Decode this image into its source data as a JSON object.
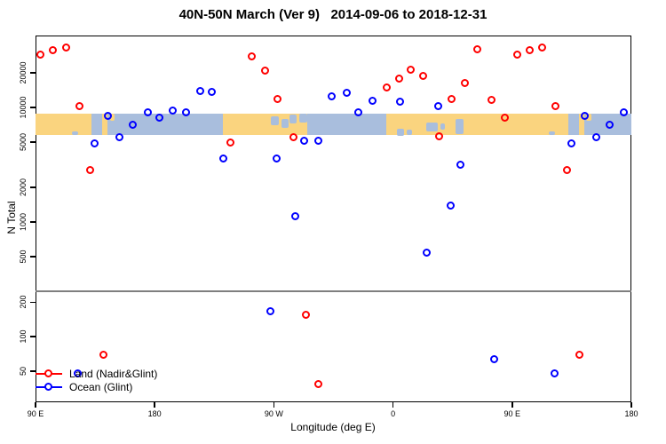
{
  "chart_data": {
    "type": "scatter",
    "title": "40N-50N March (Ver 9)   2014-09-06 to 2018-12-31",
    "xlabel": "Longitude (deg E)",
    "ylabel": "N Total",
    "y_scale": "log10",
    "xlim": [
      90,
      540
    ],
    "ylim": [
      26.8,
      42300
    ],
    "grid": false,
    "x_ticks": [
      {
        "lon": 90,
        "label": "90 E"
      },
      {
        "lon": 180,
        "label": "180"
      },
      {
        "lon": 270,
        "label": "90 W"
      },
      {
        "lon": 360,
        "label": "0"
      },
      {
        "lon": 450,
        "label": "90 E"
      },
      {
        "lon": 540,
        "label": "180"
      }
    ],
    "y_ticks": [
      {
        "n": 20000,
        "label": "20000"
      },
      {
        "n": 10000,
        "label": "10000"
      },
      {
        "n": 5000,
        "label": "5000"
      },
      {
        "n": 2000,
        "label": "2000"
      },
      {
        "n": 1000,
        "label": "1000"
      },
      {
        "n": 500,
        "label": "500"
      },
      {
        "n": 200,
        "label": "200"
      },
      {
        "n": 100,
        "label": "100"
      },
      {
        "n": 50,
        "label": "50"
      }
    ],
    "threshold_line": {
      "n": 250,
      "color": "#7f7f7f"
    },
    "legend": {
      "position": "bottom-left",
      "items": [
        {
          "name": "land",
          "label": "Land (Nadir&Glint)",
          "color": "#ff0000"
        },
        {
          "name": "ocean",
          "label": "Ocean (Glint)",
          "color": "#0000ff"
        }
      ]
    },
    "series": [
      {
        "name": "Land (Nadir&Glint)",
        "color": "#ff0000",
        "points": [
          [
            94.0,
            28600
          ],
          [
            103.5,
            31200
          ],
          [
            113.2,
            33000
          ],
          [
            123.3,
            10150
          ],
          [
            131.6,
            2810
          ],
          [
            141.4,
            69
          ],
          [
            237.5,
            4890
          ],
          [
            253.6,
            27600
          ],
          [
            263.7,
            20700
          ],
          [
            273.1,
            11700
          ],
          [
            285.2,
            5440
          ],
          [
            294.6,
            154
          ],
          [
            304.0,
            38
          ],
          [
            355.6,
            14800
          ],
          [
            365.0,
            17650
          ],
          [
            373.7,
            21100
          ],
          [
            383.1,
            18600
          ],
          [
            395.1,
            5540
          ],
          [
            404.6,
            11700
          ],
          [
            414.6,
            16150
          ],
          [
            424.0,
            31800
          ],
          [
            434.7,
            11500
          ],
          [
            444.8,
            8050
          ],
          [
            454.0,
            28600
          ],
          [
            463.5,
            31200
          ],
          [
            473.2,
            33000
          ],
          [
            483.3,
            10150
          ],
          [
            491.6,
            2810
          ],
          [
            501.4,
            69
          ]
        ]
      },
      {
        "name": "Ocean (Glint)",
        "color": "#0000ff",
        "points": [
          [
            122.3,
            47
          ],
          [
            135.0,
            4790
          ],
          [
            145.0,
            8350
          ],
          [
            153.8,
            5400
          ],
          [
            163.8,
            6950
          ],
          [
            174.9,
            8960
          ],
          [
            183.9,
            8050
          ],
          [
            193.9,
            9290
          ],
          [
            204.0,
            8960
          ],
          [
            214.7,
            13700
          ],
          [
            223.5,
            13500
          ],
          [
            232.2,
            3550
          ],
          [
            267.7,
            165
          ],
          [
            272.4,
            3550
          ],
          [
            286.5,
            1110
          ],
          [
            293.2,
            5070
          ],
          [
            304.0,
            5070
          ],
          [
            314.0,
            12400
          ],
          [
            325.4,
            13300
          ],
          [
            334.1,
            8960
          ],
          [
            344.8,
            11300
          ],
          [
            365.6,
            11100
          ],
          [
            385.8,
            540
          ],
          [
            394.5,
            10150
          ],
          [
            403.9,
            1380
          ],
          [
            411.2,
            3130
          ],
          [
            436.7,
            63
          ],
          [
            482.3,
            47
          ],
          [
            495.0,
            4790
          ],
          [
            505.0,
            8350
          ],
          [
            513.8,
            5400
          ],
          [
            523.8,
            6950
          ],
          [
            534.9,
            8960
          ]
        ]
      }
    ],
    "map_band": {
      "description": "land/ocean strip map of the 40N-50N latitude band",
      "n_top": 8880,
      "n_bottom": 5690,
      "land_color": "#fad47f",
      "ocean_color": "#a9bedd",
      "segments": [
        {
          "from": 90,
          "to": 132.3,
          "surface": "land"
        },
        {
          "from": 132.3,
          "to": 140.3,
          "surface": "ocean"
        },
        {
          "from": 140.3,
          "to": 144.5,
          "surface": "land"
        },
        {
          "from": 144.5,
          "to": 231.5,
          "surface": "ocean"
        },
        {
          "from": 231.5,
          "to": 295.5,
          "surface": "land"
        },
        {
          "from": 295.5,
          "to": 355.0,
          "surface": "ocean"
        },
        {
          "from": 355.0,
          "to": 492.3,
          "surface": "land"
        },
        {
          "from": 492.3,
          "to": 500.3,
          "surface": "ocean"
        },
        {
          "from": 500.3,
          "to": 504.5,
          "surface": "land"
        },
        {
          "from": 504.5,
          "to": 540.0,
          "surface": "ocean"
        }
      ],
      "patches": [
        {
          "from": 117.5,
          "to": 122.5,
          "top": 0.8,
          "bottom": 1.0,
          "surface": "ocean",
          "name": "bohai-sea"
        },
        {
          "from": 267.5,
          "to": 273.5,
          "top": 0.15,
          "bottom": 0.55,
          "surface": "ocean",
          "name": "great-lakes-west"
        },
        {
          "from": 275.5,
          "to": 281.0,
          "top": 0.25,
          "bottom": 0.65,
          "surface": "ocean",
          "name": "great-lakes-east"
        },
        {
          "from": 282.0,
          "to": 287.5,
          "top": 0.05,
          "bottom": 0.45,
          "surface": "ocean",
          "name": "st-lawrence"
        },
        {
          "from": 289.0,
          "to": 295.5,
          "top": 0.0,
          "bottom": 0.4,
          "surface": "ocean",
          "name": "gulf-st-lawrence"
        },
        {
          "from": 363.0,
          "to": 368.0,
          "top": 0.7,
          "bottom": 1.0,
          "surface": "ocean",
          "name": "mediterranean-west"
        },
        {
          "from": 370.5,
          "to": 374.5,
          "top": 0.75,
          "bottom": 1.0,
          "surface": "ocean",
          "name": "adriatic"
        },
        {
          "from": 385.0,
          "to": 393.5,
          "top": 0.4,
          "bottom": 0.8,
          "surface": "ocean",
          "name": "black-sea"
        },
        {
          "from": 395.5,
          "to": 399.5,
          "top": 0.45,
          "bottom": 0.75,
          "surface": "ocean",
          "name": "azov"
        },
        {
          "from": 407.0,
          "to": 413.5,
          "top": 0.25,
          "bottom": 0.95,
          "surface": "ocean",
          "name": "caspian-sea"
        },
        {
          "from": 477.5,
          "to": 482.5,
          "top": 0.8,
          "bottom": 1.0,
          "surface": "ocean",
          "name": "bohai-sea-wrap"
        },
        {
          "from": 146.0,
          "to": 149.5,
          "top": 0.0,
          "bottom": 0.35,
          "surface": "land",
          "name": "kuril-hokkaido"
        },
        {
          "from": 506.0,
          "to": 509.5,
          "top": 0.0,
          "bottom": 0.35,
          "surface": "land",
          "name": "kuril-hokkaido-wrap"
        }
      ]
    }
  }
}
